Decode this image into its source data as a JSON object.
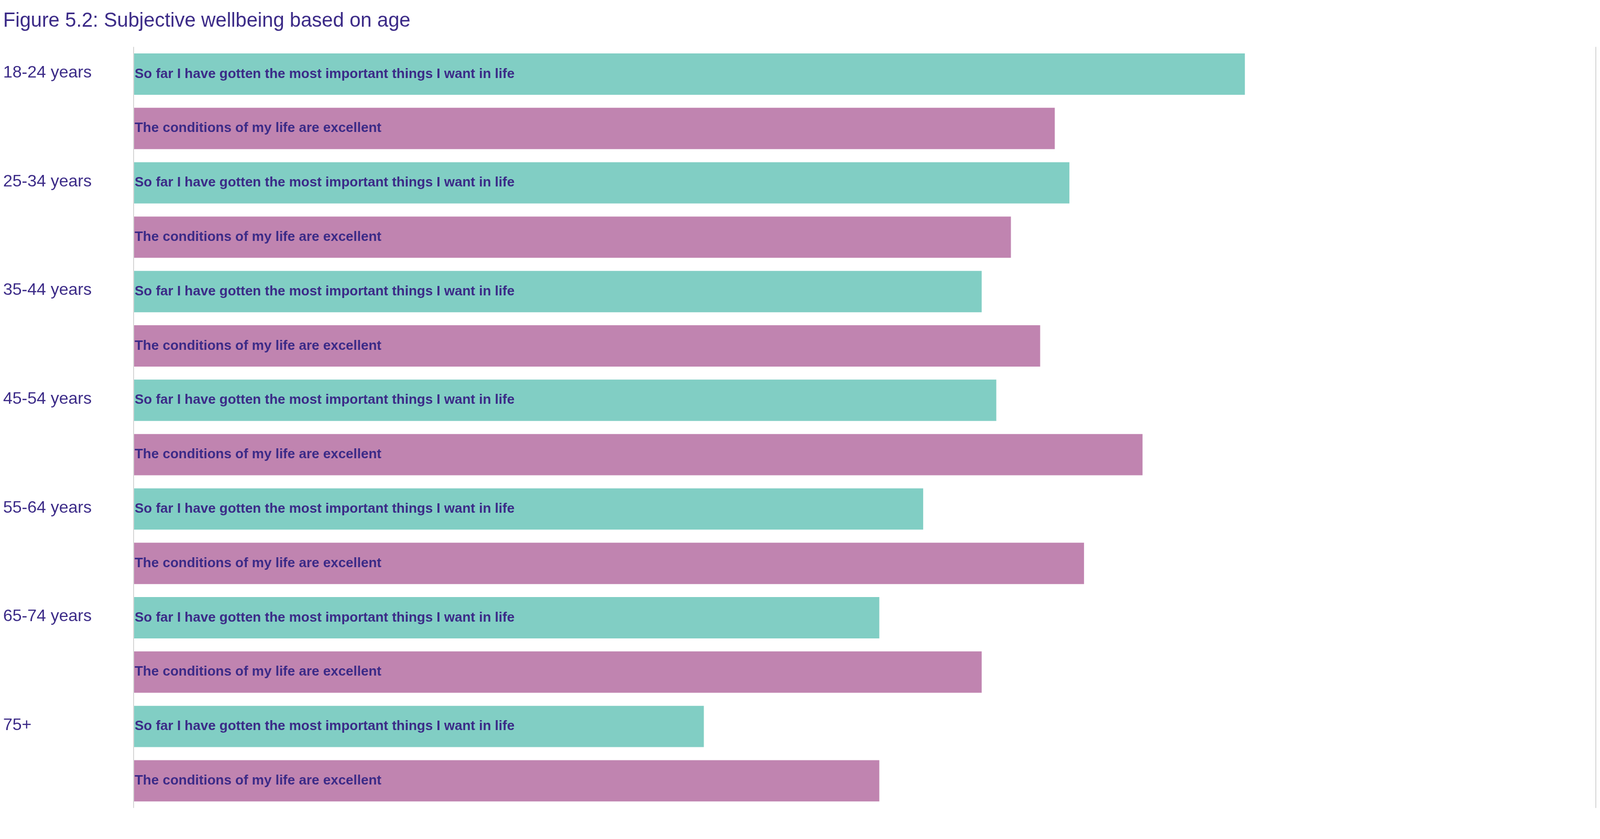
{
  "chart_data": {
    "type": "bar",
    "title": "Figure 5.2: Subjective wellbeing based on age",
    "orientation": "horizontal",
    "categories": [
      "18-24 years",
      "25-34 years",
      "35-44 years",
      "45-54 years",
      "55-64 years",
      "65-74 years",
      "75+"
    ],
    "series": [
      {
        "name": "So far I have gotten the most important things I want in life",
        "color": "#81cec4",
        "values": [
          76,
          64,
          58,
          59,
          54,
          51,
          39
        ]
      },
      {
        "name": "The conditions of my life are excellent",
        "color": "#c084b0",
        "values": [
          63,
          60,
          62,
          69,
          65,
          58,
          51
        ]
      }
    ],
    "xlim": [
      0,
      100
    ],
    "grid": false,
    "tick_labels": "y"
  }
}
